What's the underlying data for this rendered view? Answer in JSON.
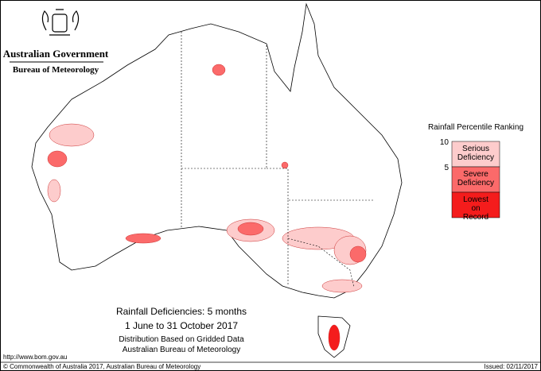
{
  "header": {
    "government": "Australian Government",
    "bureau": "Bureau of Meteorology"
  },
  "legend": {
    "title": "Rainfall Percentile Ranking",
    "ticks": [
      10,
      5
    ],
    "classes": [
      {
        "label": "Serious Deficiency",
        "color": "#fdcccc"
      },
      {
        "label": "Severe Deficiency",
        "color": "#fb6a6a"
      },
      {
        "label": "Lowest on Record",
        "color": "#f41c1c"
      }
    ]
  },
  "caption": {
    "title": "Rainfall Deficiencies: 5 months",
    "period": "1 June to 31 October 2017",
    "note1": "Distribution Based on Gridded Data",
    "note2": "Australian Bureau of Meteorology"
  },
  "footer": {
    "url": "http://www.bom.gov.au",
    "copyright": "© Commonwealth of Australia 2017, Australian Bureau of Meteorology",
    "issued": "Issued: 02/11/2017"
  }
}
